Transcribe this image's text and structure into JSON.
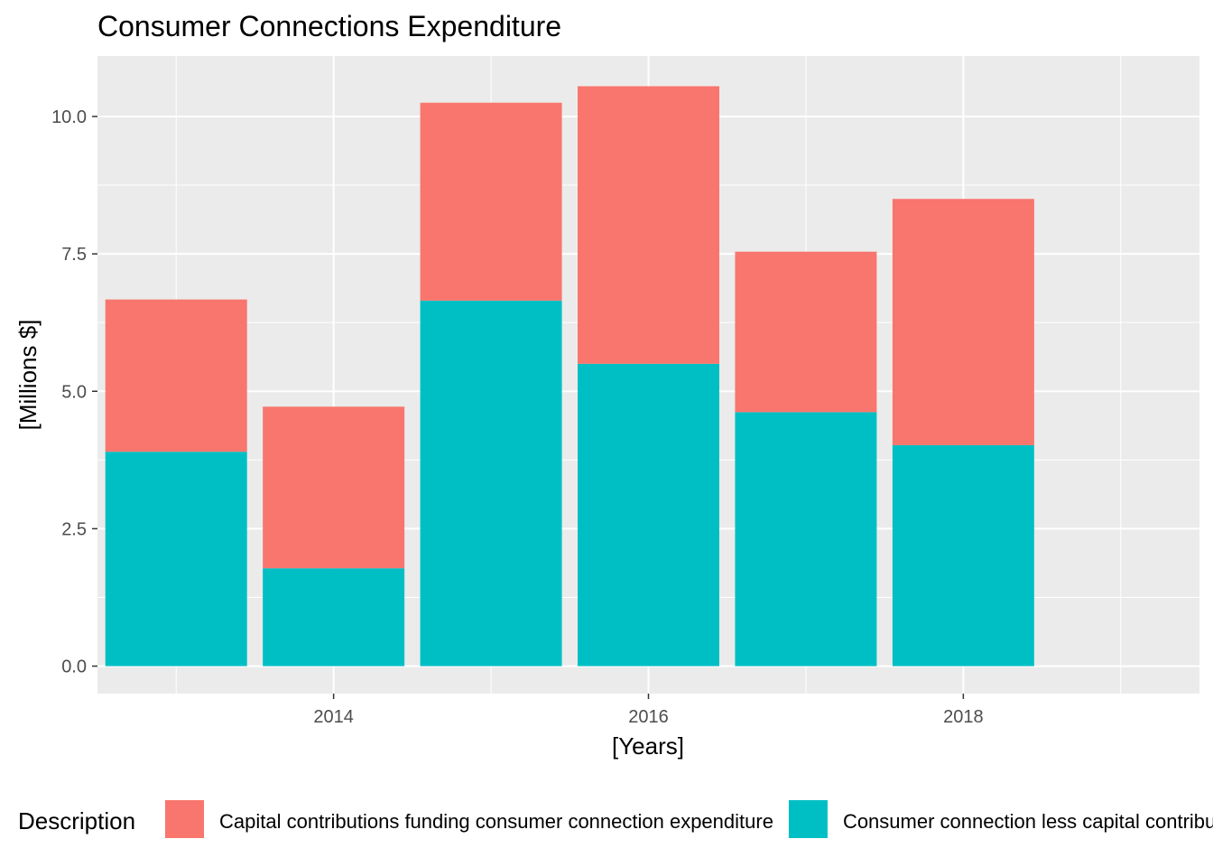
{
  "chart_data": {
    "type": "bar",
    "stacked": true,
    "title": "Consumer Connections Expenditure",
    "xlabel": "[Years]",
    "ylabel": "[Millions $]",
    "x": [
      2013,
      2014,
      2015,
      2016,
      2017,
      2018
    ],
    "xlim": [
      2012.5,
      2019.5
    ],
    "ylim": [
      -0.5,
      11.1
    ],
    "x_ticks": [
      2014,
      2016,
      2018
    ],
    "x_tick_labels": [
      "2014",
      "2016",
      "2018"
    ],
    "y_ticks": [
      0.0,
      2.5,
      5.0,
      7.5,
      10.0
    ],
    "y_tick_labels": [
      "0.0",
      "2.5",
      "5.0",
      "7.5",
      "10.0"
    ],
    "grid": true,
    "legend": {
      "title": "Description",
      "position": "bottom"
    },
    "series": [
      {
        "name": "Consumer connection less capital contributions",
        "color": "#00bfc4",
        "values": [
          3.9,
          1.78,
          6.65,
          5.5,
          4.62,
          4.02
        ]
      },
      {
        "name": "Capital contributions funding consumer connection expenditure",
        "color": "#f8766d",
        "values": [
          2.77,
          2.94,
          3.6,
          5.05,
          2.92,
          4.48
        ]
      }
    ],
    "legend_order": [
      1,
      0
    ],
    "panel_background": "#ebebeb",
    "grid_color": "#ffffff"
  }
}
